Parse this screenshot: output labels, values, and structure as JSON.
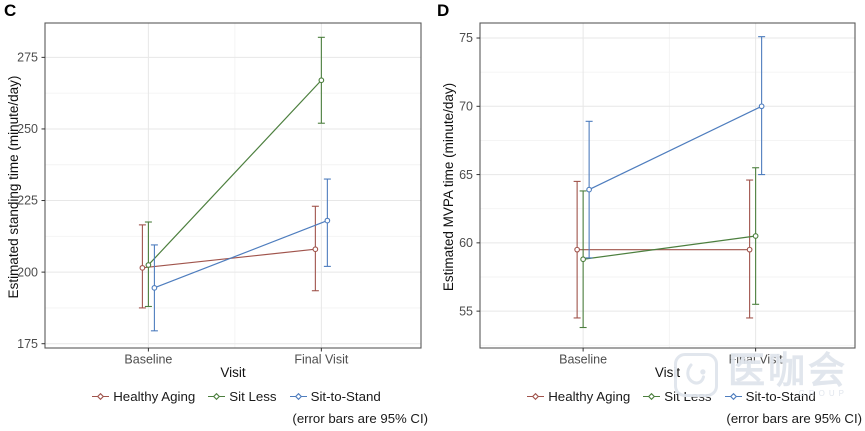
{
  "chart_data": [
    {
      "type": "line",
      "title": "C",
      "xlabel": "Visit",
      "ylabel": "Estimated standing time (minute/day)",
      "categories": [
        "Baseline",
        "Final Visit"
      ],
      "yticks": [
        175,
        200,
        225,
        250,
        275
      ],
      "ylim": [
        173.5,
        287
      ],
      "grid": true,
      "legend_position": "bottom",
      "error_bars": "95% CI",
      "legend_note": "(error bars are 95% CI)",
      "series": [
        {
          "name": "Healthy Aging",
          "color": "#A0544C",
          "values": [
            201.5,
            208
          ],
          "ci_low": [
            187.5,
            193.5
          ],
          "ci_high": [
            216.5,
            223
          ]
        },
        {
          "name": "Sit Less",
          "color": "#4C7F3E",
          "values": [
            202.5,
            267
          ],
          "ci_low": [
            188,
            252
          ],
          "ci_high": [
            217.5,
            282
          ]
        },
        {
          "name": "Sit-to-Stand",
          "color": "#4E7DBE",
          "values": [
            194.5,
            218
          ],
          "ci_low": [
            179.5,
            202
          ],
          "ci_high": [
            209.5,
            232.5
          ]
        }
      ]
    },
    {
      "type": "line",
      "title": "D",
      "xlabel": "Visit",
      "ylabel": "Estimated MVPA time (minute/day)",
      "categories": [
        "Baseline",
        "Final Visit"
      ],
      "yticks": [
        55,
        60,
        65,
        70,
        75
      ],
      "ylim": [
        52.3,
        76.1
      ],
      "grid": true,
      "legend_position": "bottom",
      "error_bars": "95% CI",
      "legend_note": "(error bars are 95% CI)",
      "series": [
        {
          "name": "Healthy Aging",
          "color": "#A0544C",
          "values": [
            59.5,
            59.5
          ],
          "ci_low": [
            54.5,
            54.5
          ],
          "ci_high": [
            64.5,
            64.6
          ]
        },
        {
          "name": "Sit Less",
          "color": "#4C7F3E",
          "values": [
            58.8,
            60.5
          ],
          "ci_low": [
            53.8,
            55.5
          ],
          "ci_high": [
            63.8,
            65.5
          ]
        },
        {
          "name": "Sit-to-Stand",
          "color": "#4E7DBE",
          "values": [
            63.9,
            70.0
          ],
          "ci_low": [
            58.9,
            65.0
          ],
          "ci_high": [
            68.9,
            75.1
          ]
        }
      ]
    }
  ],
  "style": {
    "background": "#ffffff",
    "panel_border": "#595959",
    "grid_major": "#e7e7e7",
    "grid_minor": "#f3f3f3",
    "tick_color": "#333333",
    "tick_label_color": "#4d4d4d",
    "axis_title_color": "#111111",
    "marker_fill": "#ffffff"
  },
  "watermark": {
    "text": "医咖会",
    "subtext": "GROUP"
  }
}
